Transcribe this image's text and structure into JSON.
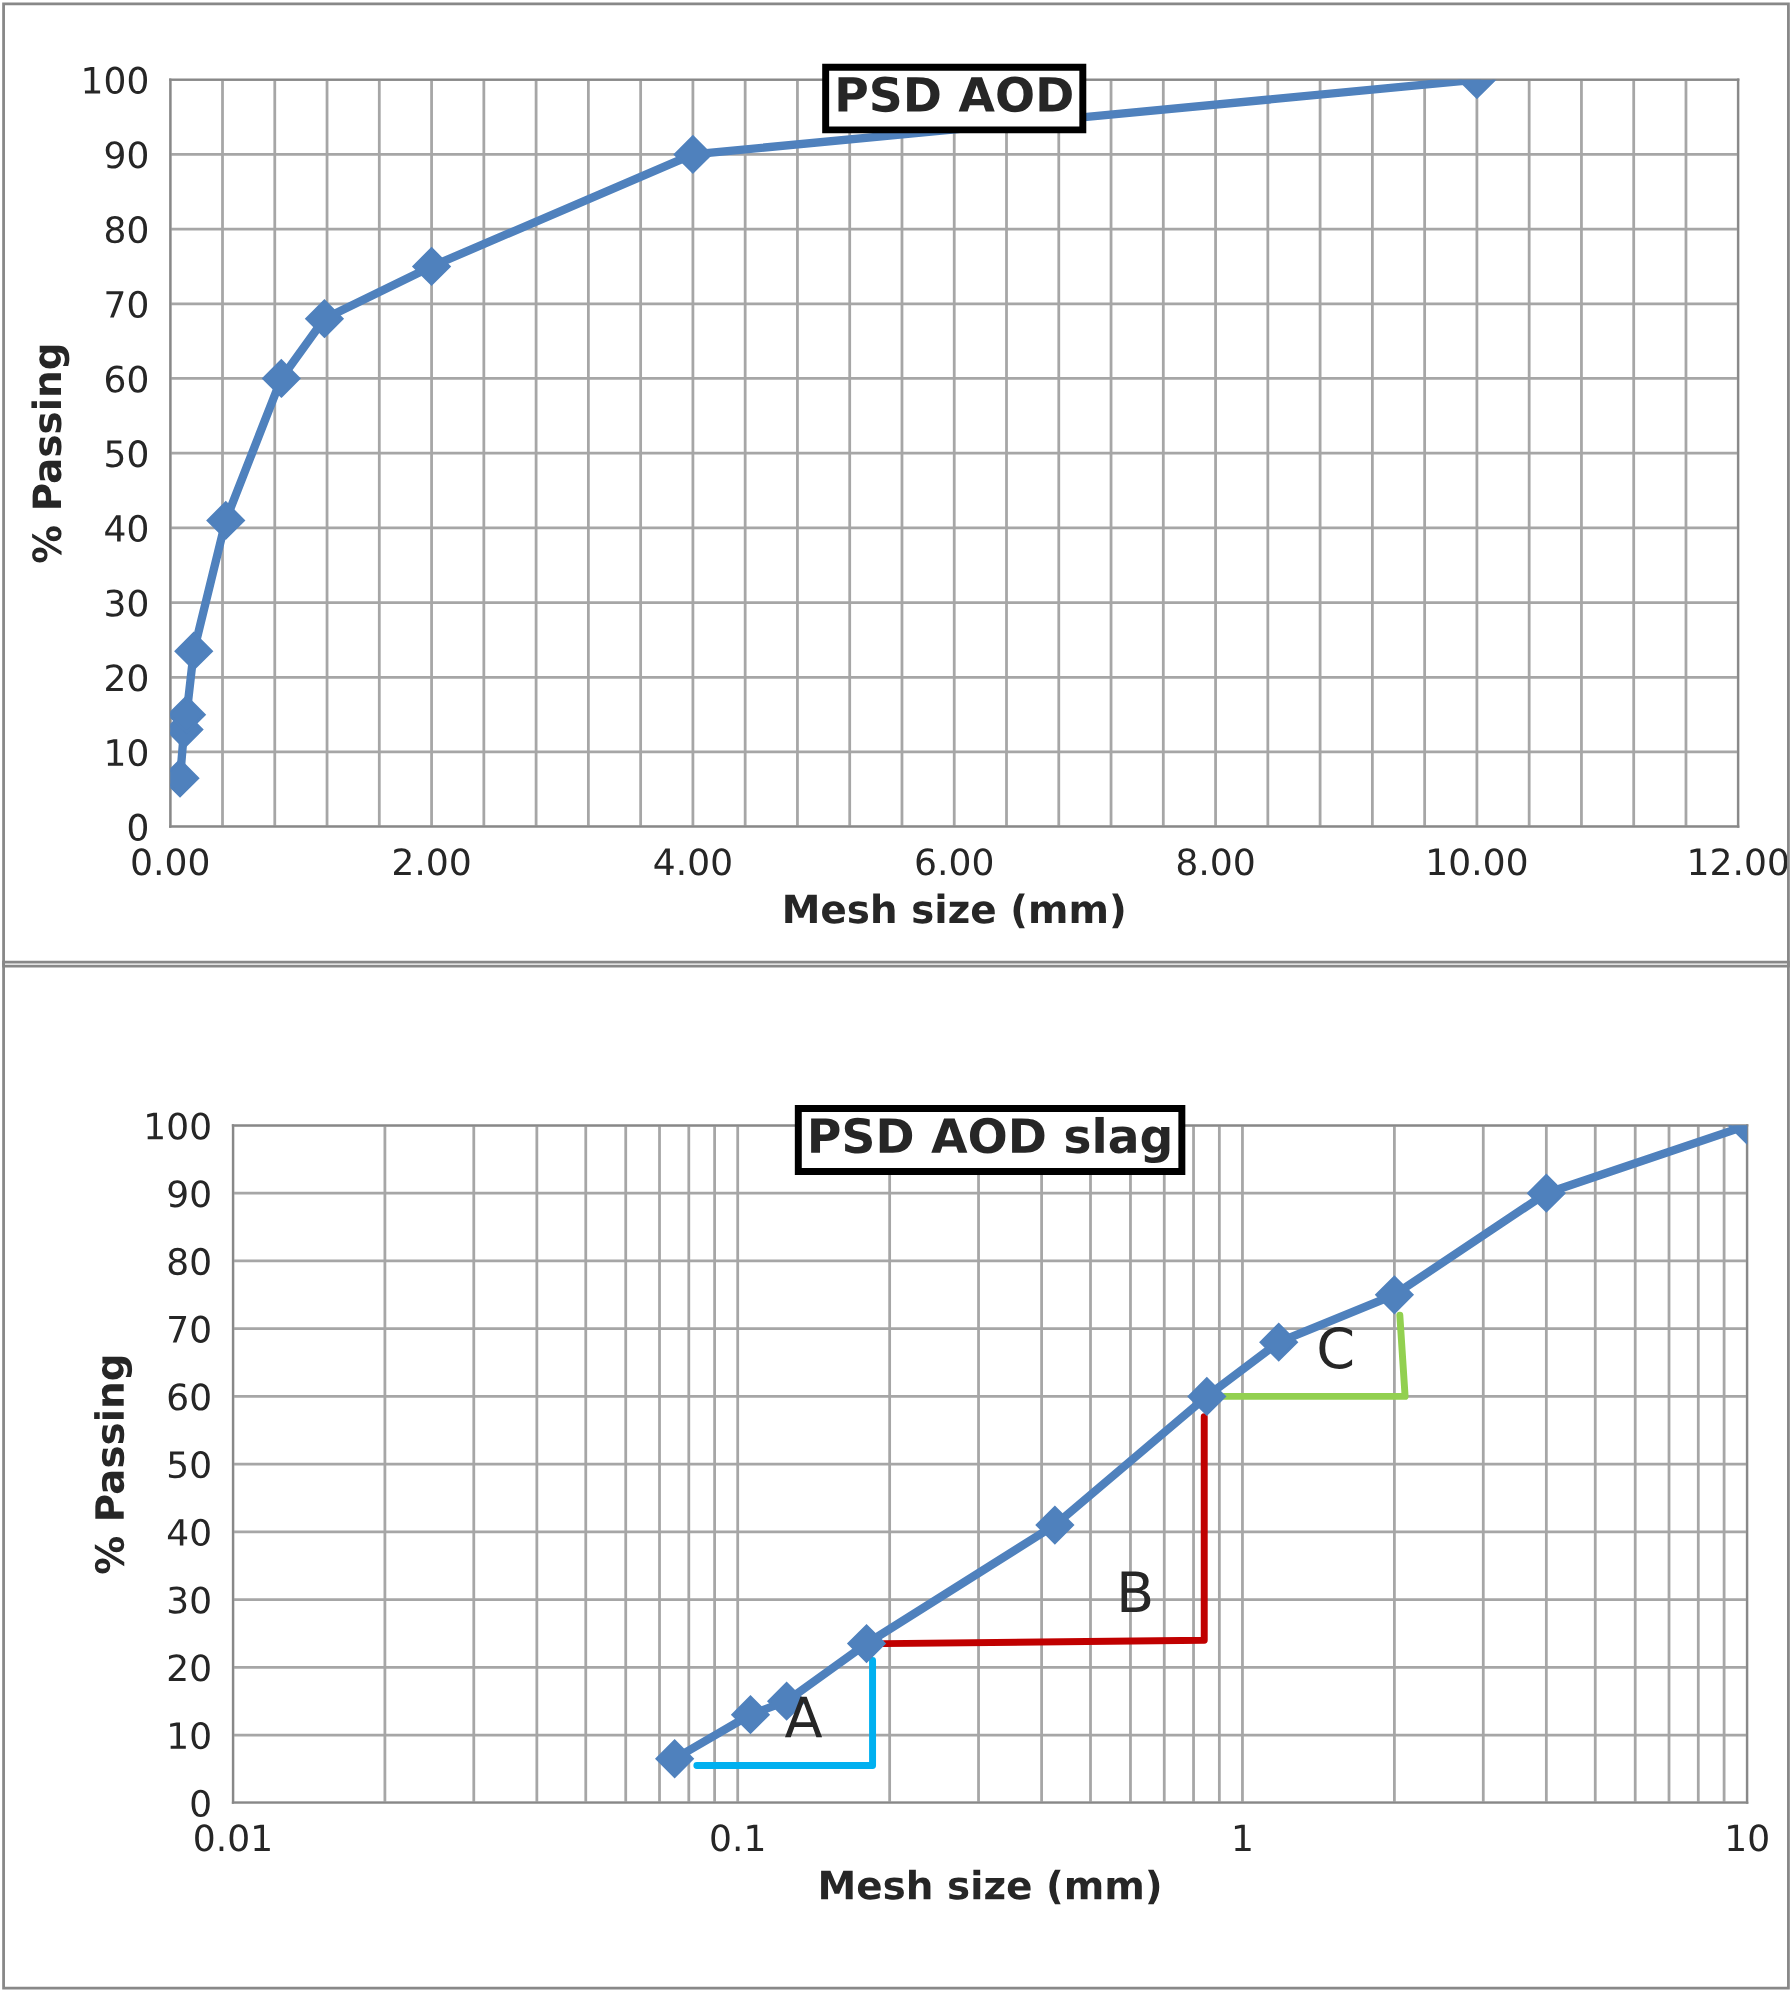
{
  "chart_data": [
    {
      "type": "line",
      "title": "PSD AOD",
      "xlabel": "Mesh size (mm)",
      "ylabel": "% Passing",
      "x": [
        0.075,
        0.106,
        0.125,
        0.18,
        0.425,
        0.85,
        1.18,
        2,
        4,
        10
      ],
      "series": [
        {
          "color": "#4f81bd",
          "values": [
            6.5,
            13,
            15,
            23.5,
            41,
            60,
            68,
            75,
            90,
            100
          ]
        }
      ],
      "marker": "diamond",
      "line_style": "solid",
      "grid": true,
      "xlim": [
        0,
        12
      ],
      "ylim": [
        0,
        100
      ],
      "xticks": [
        {
          "value": 0,
          "label": "0.00"
        },
        {
          "value": 0.4,
          "label": null
        },
        {
          "value": 0.8,
          "label": null
        },
        {
          "value": 1.2,
          "label": null
        },
        {
          "value": 1.6,
          "label": null
        },
        {
          "value": 2,
          "label": "2.00"
        },
        {
          "value": 2.4,
          "label": null
        },
        {
          "value": 2.8,
          "label": null
        },
        {
          "value": 3.2,
          "label": null
        },
        {
          "value": 3.6,
          "label": null
        },
        {
          "value": 4,
          "label": "4.00"
        },
        {
          "value": 4.4,
          "label": null
        },
        {
          "value": 4.8,
          "label": null
        },
        {
          "value": 5.2,
          "label": null
        },
        {
          "value": 5.6,
          "label": null
        },
        {
          "value": 6,
          "label": "6.00"
        },
        {
          "value": 6.4,
          "label": null
        },
        {
          "value": 6.8,
          "label": null
        },
        {
          "value": 7.2,
          "label": null
        },
        {
          "value": 7.6,
          "label": null
        },
        {
          "value": 8,
          "label": "8.00"
        },
        {
          "value": 8.4,
          "label": null
        },
        {
          "value": 8.8,
          "label": null
        },
        {
          "value": 9.2,
          "label": null
        },
        {
          "value": 9.6,
          "label": null
        },
        {
          "value": 10,
          "label": "10.00"
        },
        {
          "value": 10.4,
          "label": null
        },
        {
          "value": 10.8,
          "label": null
        },
        {
          "value": 11.2,
          "label": null
        },
        {
          "value": 11.6,
          "label": null
        },
        {
          "value": 12,
          "label": "12.00"
        }
      ],
      "yticks": [
        0,
        10,
        20,
        30,
        40,
        50,
        60,
        70,
        80,
        90,
        100
      ]
    },
    {
      "type": "line",
      "title": "PSD AOD slag",
      "xlabel": "Mesh size (mm)",
      "ylabel": "% Passing",
      "log": "x",
      "x": [
        0.075,
        0.106,
        0.125,
        0.18,
        0.425,
        0.85,
        1.18,
        2,
        4,
        10
      ],
      "series": [
        {
          "color": "#4f81bd",
          "values": [
            6.5,
            13,
            15,
            23.5,
            41,
            60,
            68,
            75,
            90,
            100
          ]
        },
        {
          "type": "line",
          "marker": "none",
          "color": "#00b0f0",
          "x": [
            0.083,
            0.185,
            0.185
          ],
          "values": [
            5.5,
            5.5,
            21
          ]
        },
        {
          "type": "line",
          "marker": "none",
          "color": "#c00000",
          "x": [
            0.195,
            0.84,
            0.84
          ],
          "values": [
            23.5,
            24,
            57
          ]
        },
        {
          "type": "line",
          "marker": "none",
          "color": "#92d050",
          "x": [
            0.92,
            2.1,
            2.05
          ],
          "values": [
            60,
            60,
            72
          ]
        }
      ],
      "annotations": [
        "A",
        "B",
        "C"
      ],
      "marker": "diamond",
      "line_style": "solid",
      "grid": true,
      "xlim": [
        0.01,
        10
      ],
      "ylim": [
        0,
        100
      ],
      "xticks": [
        {
          "value": 0.01,
          "label": "0.01"
        },
        {
          "value": 0.02,
          "label": null
        },
        {
          "value": 0.03,
          "label": null
        },
        {
          "value": 0.04,
          "label": null
        },
        {
          "value": 0.05,
          "label": null
        },
        {
          "value": 0.06,
          "label": null
        },
        {
          "value": 0.07,
          "label": null
        },
        {
          "value": 0.08,
          "label": null
        },
        {
          "value": 0.09,
          "label": null
        },
        {
          "value": 0.1,
          "label": "0.1"
        },
        {
          "value": 0.2,
          "label": null
        },
        {
          "value": 0.3,
          "label": null
        },
        {
          "value": 0.4,
          "label": null
        },
        {
          "value": 0.5,
          "label": null
        },
        {
          "value": 0.6,
          "label": null
        },
        {
          "value": 0.7,
          "label": null
        },
        {
          "value": 0.8,
          "label": null
        },
        {
          "value": 0.9,
          "label": null
        },
        {
          "value": 1,
          "label": "1"
        },
        {
          "value": 2,
          "label": null
        },
        {
          "value": 3,
          "label": null
        },
        {
          "value": 4,
          "label": null
        },
        {
          "value": 5,
          "label": null
        },
        {
          "value": 6,
          "label": null
        },
        {
          "value": 7,
          "label": null
        },
        {
          "value": 8,
          "label": null
        },
        {
          "value": 9,
          "label": null
        },
        {
          "value": 10,
          "label": "10"
        }
      ],
      "yticks": [
        0,
        10,
        20,
        30,
        40,
        50,
        60,
        70,
        80,
        90,
        100
      ]
    }
  ]
}
